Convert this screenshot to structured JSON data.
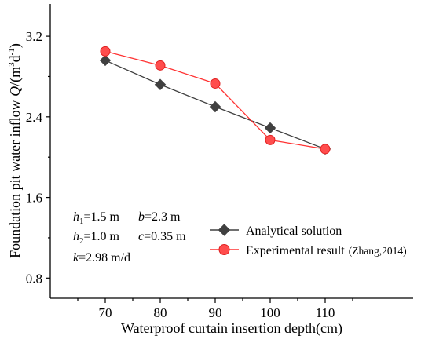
{
  "chart_data": {
    "type": "line",
    "xlabel": "Waterproof curtain insertion depth(cm)",
    "ylabel": "Foundation pit water inflow Q/(m³d⁻¹)",
    "ylabel_parts": {
      "prefix": "Foundation pit water inflow ",
      "var": "Q",
      "unit_open": "/(m",
      "sup1": "3",
      "mid": "d",
      "sup2": "-1",
      "close": ")"
    },
    "xlim": [
      60,
      126
    ],
    "ylim": [
      0.6,
      3.52
    ],
    "x_ticks": [
      70,
      80,
      90,
      100,
      110
    ],
    "y_ticks": [
      0.8,
      1.6,
      2.4,
      3.2
    ],
    "y_tick_labels": [
      "0.8",
      "1.6",
      "2.4",
      "3.2"
    ],
    "x_tick_labels": [
      "70",
      "80",
      "90",
      "100",
      "110"
    ],
    "series": [
      {
        "name": "Analytical solution",
        "marker": "diamond",
        "color": "#404040",
        "x": [
          70,
          80,
          90,
          100,
          110
        ],
        "y": [
          2.96,
          2.72,
          2.5,
          2.29,
          2.08
        ]
      },
      {
        "name": "Experimental result",
        "name_suffix": "(Zhang,2014)",
        "marker": "circle",
        "color": "#ff3333",
        "marker_fill": "#ff4d4d",
        "x": [
          70,
          80,
          90,
          100,
          110
        ],
        "y": [
          3.05,
          2.91,
          2.73,
          2.17,
          2.08
        ]
      }
    ],
    "annotations": {
      "params": [
        [
          {
            "var": "h",
            "sub": "1",
            "rest": "=1.5 m"
          },
          {
            "var": "b",
            "sub": "",
            "rest": "=2.3 m"
          }
        ],
        [
          {
            "var": "h",
            "sub": "2",
            "rest": "=1.0 m"
          },
          {
            "var": "c",
            "sub": "",
            "rest": "=0.35 m"
          }
        ],
        [
          {
            "var": "k",
            "sub": "",
            "rest": "=2.98 m/d"
          }
        ]
      ]
    },
    "legend_position": "bottom-right",
    "grid": false
  }
}
